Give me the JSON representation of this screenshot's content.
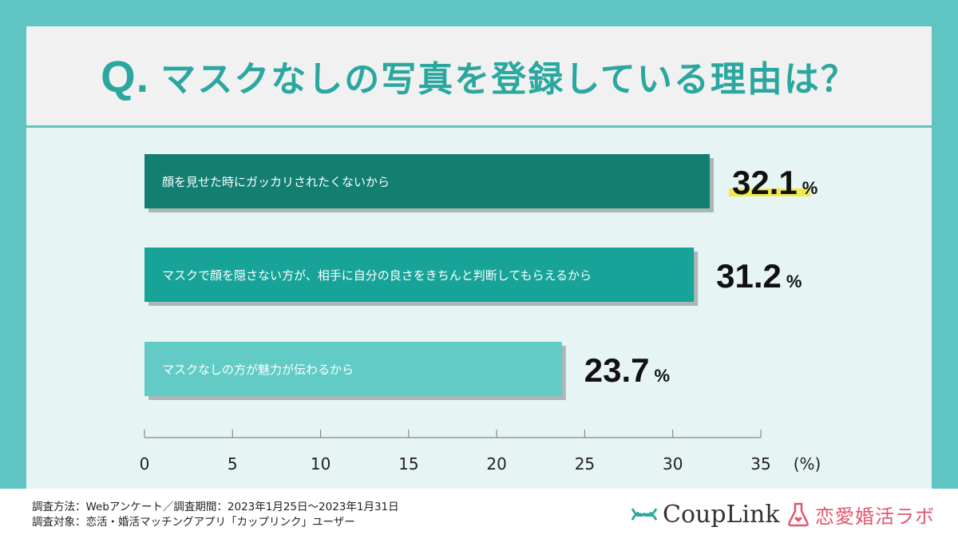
{
  "header": {
    "q_mark": "Q.",
    "title": "マスクなしの写真を登録している理由は？"
  },
  "chart_data": {
    "type": "bar",
    "orientation": "horizontal",
    "categories": [
      "顔を見せた時にガッカリされたくないから",
      "マスクで顔を隠さない方が、相手に自分の良さをきちんと判断してもらえるから",
      "マスクなしの方が魅力が伝わるから"
    ],
    "values": [
      32.1,
      31.2,
      23.7
    ],
    "value_labels": [
      "32.1",
      "31.2",
      "23.7"
    ],
    "value_unit": "%",
    "bar_colors": [
      "#137f73",
      "#17a398",
      "#62cbc5"
    ],
    "highlight_color": "#f5e94a",
    "highlight_index": 0,
    "xlim": [
      0,
      35
    ],
    "xticks": [
      "0",
      "5",
      "10",
      "15",
      "20",
      "25",
      "30",
      "35"
    ],
    "xlabel": "(%)"
  },
  "footer": {
    "method": "調査方法：Webアンケート／調査期間：2023年1月25日〜2023年1月31日",
    "target": "調査対象：恋活・婚活マッチングアプリ「カップリンク」ユーザー",
    "logo_couplink": "CoupLink",
    "logo_lab": "恋愛婚活ラボ"
  }
}
